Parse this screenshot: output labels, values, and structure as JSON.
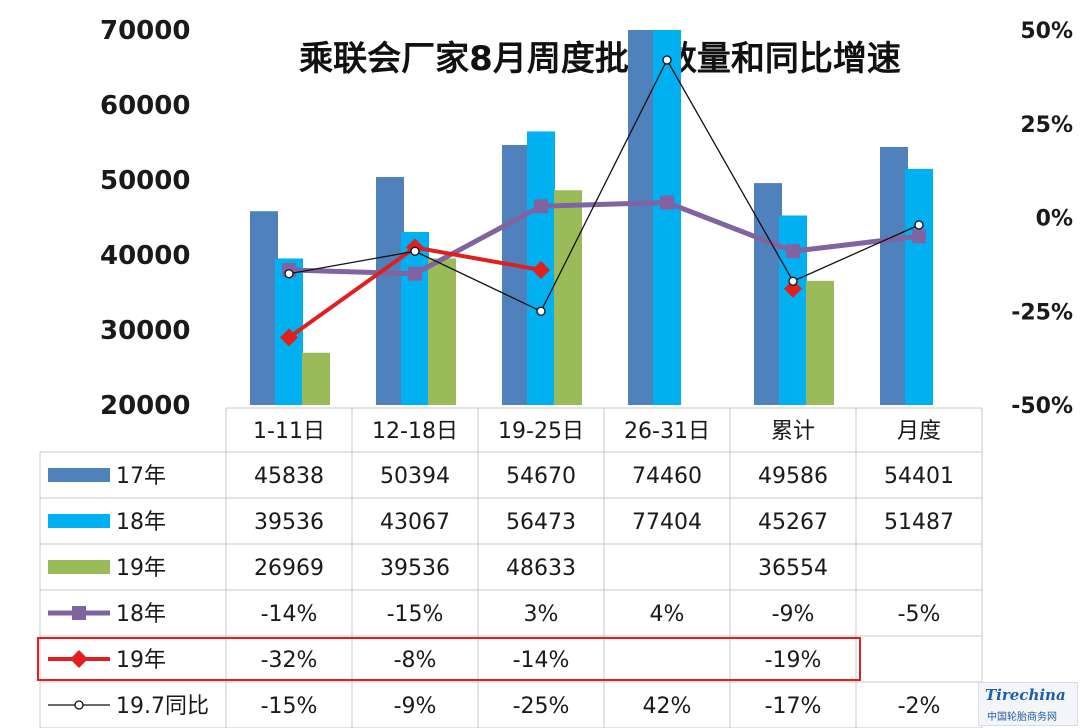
{
  "chart_data": {
    "type": "bar",
    "title": "乘联会厂家8月周度批发数量和同比增速",
    "categories": [
      "1-11日",
      "12-18日",
      "19-25日",
      "26-31日",
      "累计",
      "月度"
    ],
    "ylim": [
      20000,
      70000
    ],
    "y2lim": [
      -50,
      50
    ],
    "yticks": [
      "70000",
      "60000",
      "50000",
      "40000",
      "30000",
      "20000"
    ],
    "y2ticks": [
      "50%",
      "25%",
      "0%",
      "-25%",
      "-50%"
    ],
    "grid": false,
    "legend": "data-table",
    "bar_series": [
      {
        "name": "17年",
        "color": "#4f81bd",
        "values": [
          45838,
          50394,
          54670,
          74460,
          49586,
          54401
        ],
        "labels": [
          "45838",
          "50394",
          "54670",
          "74460",
          "49586",
          "54401"
        ]
      },
      {
        "name": "18年",
        "color": "#00b0f0",
        "values": [
          39536,
          43067,
          56473,
          77404,
          45267,
          51487
        ],
        "labels": [
          "39536",
          "43067",
          "56473",
          "77404",
          "45267",
          "51487"
        ]
      },
      {
        "name": "19年",
        "color": "#9bbb59",
        "values": [
          26969,
          39536,
          48633,
          null,
          36554,
          null
        ],
        "labels": [
          "26969",
          "39536",
          "48633",
          "",
          "36554",
          ""
        ]
      }
    ],
    "line_series": [
      {
        "name": "18年",
        "color": "#8064a2",
        "marker": "square",
        "values": [
          -14,
          -15,
          3,
          4,
          -9,
          -5
        ],
        "labels": [
          "-14%",
          "-15%",
          "3%",
          "4%",
          "-9%",
          "-5%"
        ]
      },
      {
        "name": "19年",
        "color": "#e0201f",
        "marker": "diamond",
        "values": [
          -32,
          -8,
          -14,
          null,
          -19,
          null
        ],
        "labels": [
          "-32%",
          "-8%",
          "-14%",
          "",
          "-19%",
          ""
        ]
      },
      {
        "name": "19.7同比",
        "color": "#111111",
        "marker": "circle",
        "values": [
          -15,
          -9,
          -25,
          42,
          -17,
          -2
        ],
        "labels": [
          "-15%",
          "-9%",
          "-25%",
          "42%",
          "-17%",
          "-2%"
        ]
      }
    ],
    "highlight_row": "19年"
  },
  "watermark": {
    "logo": "Tirechina",
    "sub": "中国轮胎商务网"
  },
  "colors": {
    "highlight_box": "#e0201f",
    "table_grid": "#c8c8c8"
  }
}
